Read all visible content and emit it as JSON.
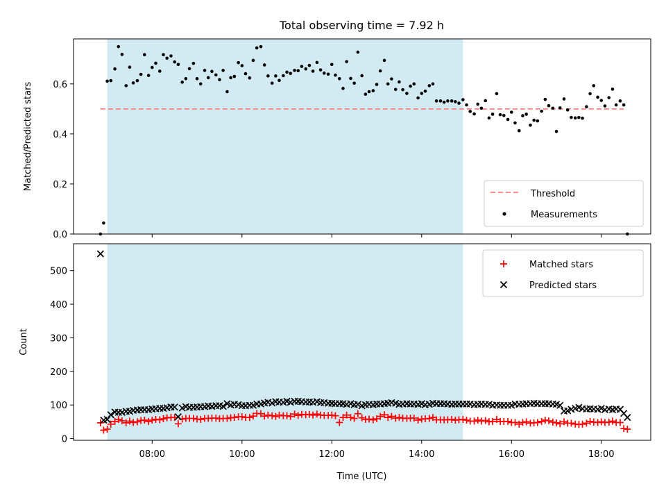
{
  "title": "Total observing time = 7.92 h",
  "xlabel": "Time (UTC)",
  "x_tick_labels": [
    "08:00",
    "10:00",
    "12:00",
    "14:00",
    "16:00",
    "18:00"
  ],
  "x_ticks_hours": [
    8,
    10,
    12,
    14,
    16,
    18
  ],
  "x_range_hours": [
    6.25,
    19.1
  ],
  "shade_range_hours": [
    7.0,
    14.92
  ],
  "colors": {
    "shade": "#add8e6",
    "threshold": "#ff7f7f",
    "measurements": "#000000",
    "matched": "#ff0000",
    "predicted": "#000000"
  },
  "chart_data": [
    {
      "type": "scatter",
      "ylabel": "Matched/Predicted stars",
      "ylim": [
        0,
        0.78
      ],
      "y_ticks": [
        0.0,
        0.2,
        0.4,
        0.6
      ],
      "y_tick_labels": [
        "0.0",
        "0.2",
        "0.4",
        "0.6"
      ],
      "legend_position": "lower-right",
      "threshold": {
        "name": "Threshold",
        "value": 0.5,
        "x_range": [
          6.85,
          18.5
        ]
      },
      "series": [
        {
          "name": "Measurements",
          "points": [
            [
              6.85,
              0.0
            ],
            [
              6.92,
              0.044
            ],
            [
              7.0,
              0.611
            ],
            [
              7.08,
              0.613
            ],
            [
              7.17,
              0.66
            ],
            [
              7.25,
              0.749
            ],
            [
              7.33,
              0.718
            ],
            [
              7.42,
              0.593
            ],
            [
              7.5,
              0.667
            ],
            [
              7.58,
              0.604
            ],
            [
              7.67,
              0.613
            ],
            [
              7.75,
              0.638
            ],
            [
              7.83,
              0.717
            ],
            [
              7.92,
              0.634
            ],
            [
              8.0,
              0.666
            ],
            [
              8.08,
              0.683
            ],
            [
              8.17,
              0.651
            ],
            [
              8.25,
              0.717
            ],
            [
              8.33,
              0.703
            ],
            [
              8.42,
              0.712
            ],
            [
              8.5,
              0.688
            ],
            [
              8.58,
              0.678
            ],
            [
              8.67,
              0.607
            ],
            [
              8.75,
              0.621
            ],
            [
              8.83,
              0.661
            ],
            [
              8.92,
              0.682
            ],
            [
              9.0,
              0.621
            ],
            [
              9.08,
              0.6
            ],
            [
              9.17,
              0.654
            ],
            [
              9.25,
              0.625
            ],
            [
              9.33,
              0.65
            ],
            [
              9.42,
              0.636
            ],
            [
              9.5,
              0.617
            ],
            [
              9.58,
              0.654
            ],
            [
              9.67,
              0.569
            ],
            [
              9.75,
              0.625
            ],
            [
              9.83,
              0.63
            ],
            [
              9.92,
              0.685
            ],
            [
              10.0,
              0.673
            ],
            [
              10.08,
              0.641
            ],
            [
              10.17,
              0.624
            ],
            [
              10.25,
              0.694
            ],
            [
              10.33,
              0.744
            ],
            [
              10.42,
              0.749
            ],
            [
              10.5,
              0.676
            ],
            [
              10.58,
              0.632
            ],
            [
              10.67,
              0.603
            ],
            [
              10.75,
              0.632
            ],
            [
              10.83,
              0.614
            ],
            [
              10.92,
              0.633
            ],
            [
              11.0,
              0.647
            ],
            [
              11.08,
              0.642
            ],
            [
              11.17,
              0.654
            ],
            [
              11.25,
              0.653
            ],
            [
              11.33,
              0.67
            ],
            [
              11.42,
              0.66
            ],
            [
              11.5,
              0.674
            ],
            [
              11.58,
              0.651
            ],
            [
              11.67,
              0.686
            ],
            [
              11.75,
              0.656
            ],
            [
              11.83,
              0.643
            ],
            [
              11.92,
              0.639
            ],
            [
              12.0,
              0.678
            ],
            [
              12.08,
              0.635
            ],
            [
              12.17,
              0.621
            ],
            [
              12.25,
              0.582
            ],
            [
              12.33,
              0.689
            ],
            [
              12.42,
              0.622
            ],
            [
              12.5,
              0.603
            ],
            [
              12.58,
              0.727
            ],
            [
              12.67,
              0.633
            ],
            [
              12.75,
              0.559
            ],
            [
              12.83,
              0.569
            ],
            [
              12.92,
              0.573
            ],
            [
              13.0,
              0.598
            ],
            [
              13.08,
              0.652
            ],
            [
              13.17,
              0.694
            ],
            [
              13.25,
              0.6
            ],
            [
              13.33,
              0.62
            ],
            [
              13.42,
              0.578
            ],
            [
              13.5,
              0.608
            ],
            [
              13.58,
              0.577
            ],
            [
              13.67,
              0.562
            ],
            [
              13.75,
              0.591
            ],
            [
              13.83,
              0.6
            ],
            [
              13.92,
              0.544
            ],
            [
              14.0,
              0.562
            ],
            [
              14.08,
              0.571
            ],
            [
              14.17,
              0.593
            ],
            [
              14.25,
              0.6
            ],
            [
              14.33,
              0.532
            ],
            [
              14.42,
              0.532
            ],
            [
              14.5,
              0.527
            ],
            [
              14.58,
              0.532
            ],
            [
              14.67,
              0.532
            ],
            [
              14.75,
              0.529
            ],
            [
              14.83,
              0.523
            ],
            [
              14.92,
              0.537
            ],
            [
              15.0,
              0.516
            ],
            [
              15.08,
              0.49
            ],
            [
              15.17,
              0.48
            ],
            [
              15.25,
              0.519
            ],
            [
              15.33,
              0.503
            ],
            [
              15.42,
              0.533
            ],
            [
              15.5,
              0.464
            ],
            [
              15.58,
              0.479
            ],
            [
              15.67,
              0.561
            ],
            [
              15.75,
              0.477
            ],
            [
              15.83,
              0.474
            ],
            [
              15.92,
              0.458
            ],
            [
              16.0,
              0.487
            ],
            [
              16.08,
              0.444
            ],
            [
              16.17,
              0.413
            ],
            [
              16.25,
              0.473
            ],
            [
              16.33,
              0.479
            ],
            [
              16.42,
              0.435
            ],
            [
              16.5,
              0.455
            ],
            [
              16.58,
              0.452
            ],
            [
              16.67,
              0.491
            ],
            [
              16.75,
              0.538
            ],
            [
              16.83,
              0.513
            ],
            [
              16.92,
              0.503
            ],
            [
              17.0,
              0.41
            ],
            [
              17.08,
              0.504
            ],
            [
              17.17,
              0.54
            ],
            [
              17.25,
              0.496
            ],
            [
              17.33,
              0.466
            ],
            [
              17.42,
              0.464
            ],
            [
              17.5,
              0.466
            ],
            [
              17.58,
              0.463
            ],
            [
              17.67,
              0.509
            ],
            [
              17.75,
              0.561
            ],
            [
              17.83,
              0.593
            ],
            [
              17.92,
              0.547
            ],
            [
              18.0,
              0.534
            ],
            [
              18.08,
              0.512
            ],
            [
              18.17,
              0.545
            ],
            [
              18.25,
              0.579
            ],
            [
              18.33,
              0.516
            ],
            [
              18.42,
              0.532
            ],
            [
              18.5,
              0.516
            ],
            [
              18.58,
              0.0
            ]
          ]
        }
      ]
    },
    {
      "type": "scatter",
      "ylabel": "Count",
      "ylim": [
        -5,
        580
      ],
      "y_ticks": [
        0,
        100,
        200,
        300,
        400,
        500
      ],
      "y_tick_labels": [
        "0",
        "100",
        "200",
        "300",
        "400",
        "500"
      ],
      "legend_position": "upper-right",
      "x": [
        6.85,
        6.92,
        7.0,
        7.08,
        7.17,
        7.25,
        7.33,
        7.42,
        7.5,
        7.58,
        7.67,
        7.75,
        7.83,
        7.92,
        8.0,
        8.08,
        8.17,
        8.25,
        8.33,
        8.42,
        8.5,
        8.58,
        8.67,
        8.75,
        8.83,
        8.92,
        9.0,
        9.08,
        9.17,
        9.25,
        9.33,
        9.42,
        9.5,
        9.58,
        9.67,
        9.75,
        9.83,
        9.92,
        10.0,
        10.08,
        10.17,
        10.25,
        10.33,
        10.42,
        10.5,
        10.58,
        10.67,
        10.75,
        10.83,
        10.92,
        11.0,
        11.08,
        11.17,
        11.25,
        11.33,
        11.42,
        11.5,
        11.58,
        11.67,
        11.75,
        11.83,
        11.92,
        12.0,
        12.08,
        12.17,
        12.25,
        12.33,
        12.42,
        12.5,
        12.58,
        12.67,
        12.75,
        12.83,
        12.92,
        13.0,
        13.08,
        13.17,
        13.25,
        13.33,
        13.42,
        13.5,
        13.58,
        13.67,
        13.75,
        13.83,
        13.92,
        14.0,
        14.08,
        14.17,
        14.25,
        14.33,
        14.42,
        14.5,
        14.58,
        14.67,
        14.75,
        14.83,
        14.92,
        15.0,
        15.08,
        15.17,
        15.25,
        15.33,
        15.42,
        15.5,
        15.58,
        15.67,
        15.75,
        15.83,
        15.92,
        16.0,
        16.08,
        16.17,
        16.25,
        16.33,
        16.42,
        16.5,
        16.58,
        16.67,
        16.75,
        16.83,
        16.92,
        17.0,
        17.08,
        17.17,
        17.25,
        17.33,
        17.42,
        17.5,
        17.58,
        17.67,
        17.75,
        17.83,
        17.92,
        18.0,
        18.08,
        18.17,
        18.25,
        18.33,
        18.42,
        18.5,
        18.58
      ],
      "series": [
        {
          "name": "Matched stars",
          "marker": "plus",
          "values": [
            47,
            25,
            28,
            43,
            51,
            57,
            53,
            47,
            52,
            48,
            50,
            54,
            55,
            51,
            55,
            57,
            56,
            59,
            62,
            63,
            63,
            44,
            58,
            60,
            60,
            60,
            58,
            57,
            60,
            60,
            61,
            61,
            59,
            60,
            60,
            62,
            63,
            65,
            65,
            63,
            63,
            67,
            75,
            74,
            67,
            70,
            68,
            66,
            70,
            68,
            68,
            66,
            73,
            69,
            72,
            71,
            72,
            70,
            73,
            70,
            69,
            69,
            70,
            68,
            48,
            63,
            70,
            63,
            60,
            74,
            62,
            57,
            58,
            56,
            59,
            66,
            71,
            63,
            66,
            61,
            63,
            61,
            60,
            61,
            61,
            55,
            58,
            59,
            60,
            63,
            56,
            56,
            56,
            56,
            57,
            55,
            56,
            57,
            55,
            52,
            52,
            55,
            52,
            54,
            50,
            51,
            57,
            51,
            51,
            51,
            48,
            48,
            43,
            48,
            50,
            46,
            47,
            48,
            51,
            55,
            53,
            49,
            47,
            44,
            50,
            46,
            46,
            43,
            42,
            43,
            46,
            51,
            49,
            48,
            50,
            48,
            49,
            52,
            48,
            48,
            30,
            28
          ]
        },
        {
          "name": "Predicted stars",
          "marker": "x",
          "values": [
            550,
            55,
            57,
            71,
            79,
            78,
            78,
            81,
            81,
            84,
            85,
            86,
            86,
            86,
            88,
            89,
            90,
            90,
            92,
            94,
            94,
            65,
            91,
            95,
            93,
            93,
            94,
            95,
            95,
            97,
            96,
            98,
            98,
            96,
            104,
            100,
            102,
            101,
            98,
            98,
            99,
            99,
            103,
            103,
            106,
            108,
            106,
            110,
            109,
            108,
            111,
            108,
            111,
            111,
            110,
            109,
            109,
            108,
            110,
            107,
            107,
            105,
            105,
            104,
            104,
            104,
            102,
            104,
            101,
            102,
            98,
            101,
            102,
            101,
            103,
            103,
            104,
            105,
            107,
            105,
            102,
            103,
            104,
            103,
            103,
            102,
            104,
            101,
            102,
            105,
            104,
            104,
            104,
            103,
            102,
            103,
            103,
            103,
            103,
            103,
            101,
            102,
            103,
            102,
            102,
            99,
            100,
            99,
            99,
            99,
            99,
            103,
            102,
            103,
            104,
            104,
            105,
            104,
            104,
            104,
            104,
            103,
            102,
            99,
            82,
            83,
            87,
            90,
            93,
            89,
            88,
            89,
            88,
            87,
            90,
            86,
            88,
            86,
            88,
            87,
            75,
            63
          ]
        }
      ]
    }
  ]
}
